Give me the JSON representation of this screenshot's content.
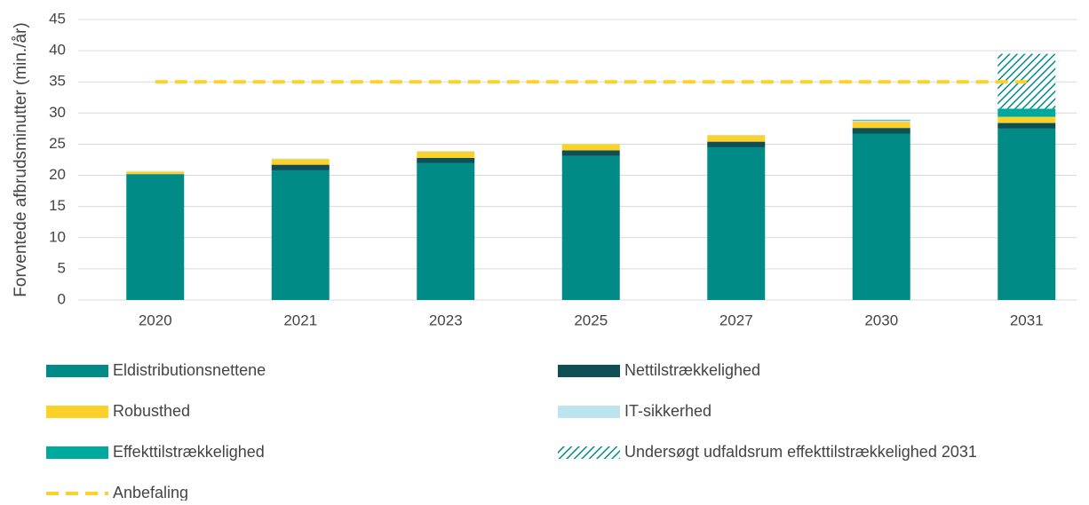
{
  "chart_data": {
    "type": "bar",
    "stacked": true,
    "y_label": "Forventede afbrudsminutter (min./år)",
    "categories": [
      "2020",
      "2021",
      "2023",
      "2025",
      "2027",
      "2030",
      "2031"
    ],
    "ylim": [
      0,
      45
    ],
    "yticks": [
      0,
      5,
      10,
      15,
      20,
      25,
      30,
      35,
      40,
      45
    ],
    "grid": true,
    "series": [
      {
        "name": "Eldistributionsnettene",
        "color": "#008b87",
        "values": [
          20.2,
          20.8,
          22.0,
          23.1,
          24.5,
          26.7,
          27.5
        ]
      },
      {
        "name": "Nettilstrækkelighed",
        "color": "#0d4f55",
        "values": [
          0,
          0.9,
          0.8,
          0.9,
          0.9,
          0.9,
          0.9
        ]
      },
      {
        "name": "Robusthed",
        "color": "#fcd22a",
        "values": [
          0.4,
          0.9,
          1.0,
          1.0,
          1.0,
          1.0,
          1.0
        ]
      },
      {
        "name": "IT-sikkerhed",
        "color": "#bde3ee",
        "values": [
          0.1,
          0.1,
          0.1,
          0.1,
          0.1,
          0.2,
          0
        ]
      },
      {
        "name": "Effekttilstrækkelighed",
        "color": "#00a99d",
        "values": [
          0,
          0,
          0,
          0,
          0,
          0.1,
          1.3
        ]
      },
      {
        "name": "Undersøgt udfaldsrum effekttilstrækkelighed 2031",
        "color": "#008b87",
        "pattern": "hatch",
        "values": [
          0,
          0,
          0,
          0,
          0,
          0,
          8.8
        ]
      },
      {
        "name": "Anbefaling",
        "color": "#fcd22a",
        "kind": "line",
        "dashed": true,
        "values": [
          35,
          35,
          35,
          35,
          35,
          35,
          35
        ]
      }
    ]
  }
}
